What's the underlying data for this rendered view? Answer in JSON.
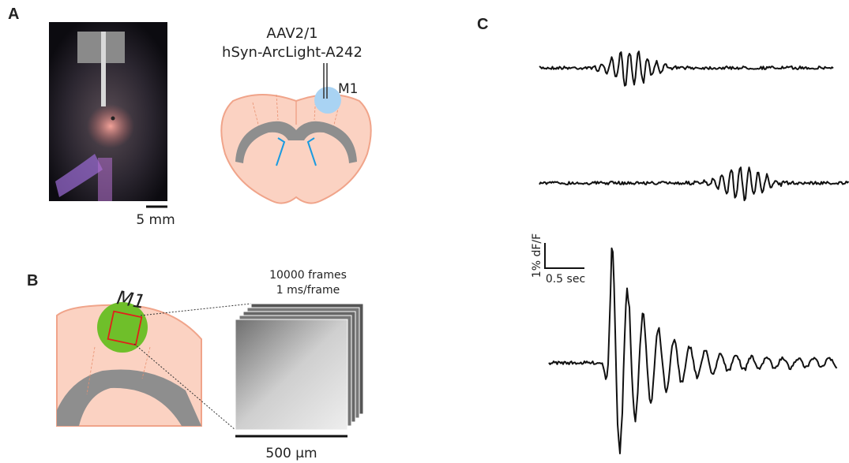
{
  "panels": {
    "a": {
      "letter": "A",
      "virus": "AAV2/1",
      "construct": "hSyn-ArcLight-A242",
      "region": "M1",
      "scale": "5 mm"
    },
    "b": {
      "letter": "B",
      "region": "M1",
      "frames": "10000 frames",
      "rate": "1 ms/frame",
      "scale": "500 µm"
    },
    "c": {
      "letter": "C",
      "scale_y": "1% dF/F",
      "scale_x": "0.5 sec"
    }
  }
}
